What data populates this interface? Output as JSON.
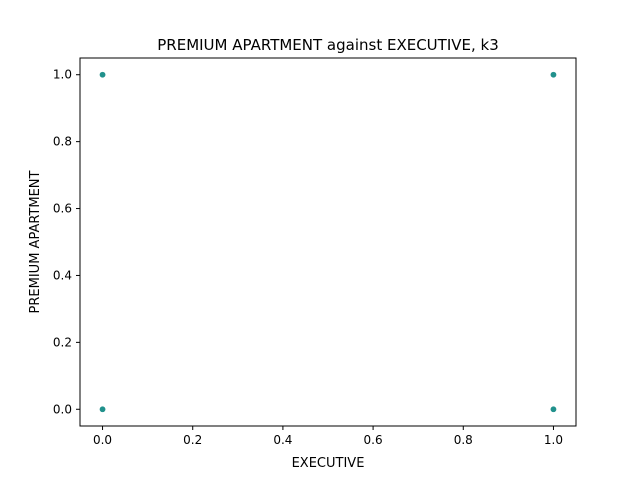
{
  "chart_data": {
    "type": "scatter",
    "title": "PREMIUM APARTMENT against EXECUTIVE, k3",
    "xlabel": "EXECUTIVE",
    "ylabel": "PREMIUM APARTMENT",
    "xlim": [
      -0.05,
      1.05
    ],
    "ylim": [
      -0.05,
      1.05
    ],
    "xticks": [
      "0.0",
      "0.2",
      "0.4",
      "0.6",
      "0.8",
      "1.0"
    ],
    "xtick_values": [
      0.0,
      0.2,
      0.4,
      0.6,
      0.8,
      1.0
    ],
    "yticks": [
      "0.0",
      "0.2",
      "0.4",
      "0.6",
      "0.8",
      "1.0"
    ],
    "ytick_values": [
      0.0,
      0.2,
      0.4,
      0.6,
      0.8,
      1.0
    ],
    "grid": false,
    "marker_color": "#21918c",
    "points": [
      {
        "x": 0,
        "y": 1
      },
      {
        "x": 1,
        "y": 1
      },
      {
        "x": 0,
        "y": 0
      },
      {
        "x": 1,
        "y": 0
      }
    ]
  }
}
